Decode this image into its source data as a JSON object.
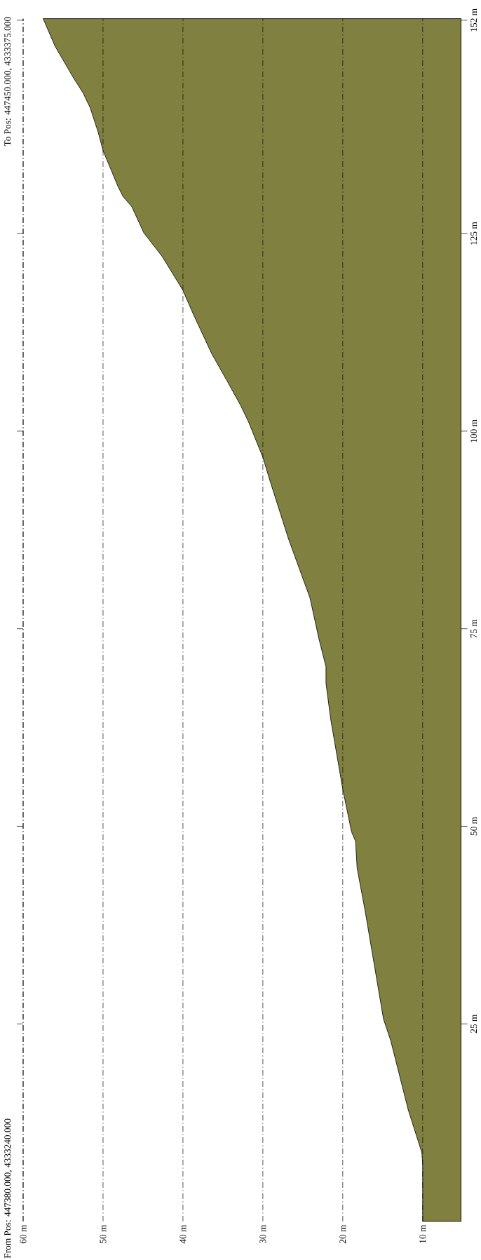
{
  "chart_data": {
    "type": "area",
    "orientation": "horizontal",
    "color": "#808040",
    "grid": "x",
    "x": [
      0,
      7.2,
      8.7,
      14.1,
      22.9,
      25.6,
      39.3,
      44.7,
      48.1,
      49.3,
      54.7,
      63.5,
      68.1,
      70.2,
      73.8,
      78.9,
      86.4,
      93.7,
      96.7,
      101.2,
      103.3,
      106.4,
      109.8,
      114.8,
      117.8,
      119.8,
      122.1,
      125.1,
      128.4,
      129.7,
      130.9,
      135.5,
      137.8,
      140.9,
      142.8,
      144.7,
      148.7,
      152.2
    ],
    "values": [
      10,
      10,
      10.1,
      11.8,
      14.0,
      14.9,
      17.2,
      18.2,
      18.4,
      18.9,
      20.0,
      21.5,
      22.1,
      22.1,
      23.0,
      24.1,
      26.8,
      29.1,
      30.0,
      31.8,
      32.8,
      34.5,
      36.4,
      38.7,
      40.0,
      41.2,
      42.6,
      44.9,
      46.4,
      47.5,
      48.1,
      50.0,
      50.6,
      51.6,
      52.5,
      53.7,
      56.0,
      57.5
    ],
    "xlim": [
      60,
      5.2
    ],
    "xticks": [
      {
        "value": 10,
        "label": "10 m"
      },
      {
        "value": 20,
        "label": "20 m"
      },
      {
        "value": 30,
        "label": "30 m"
      },
      {
        "value": 40,
        "label": "40 m"
      },
      {
        "value": 50,
        "label": "50 m"
      },
      {
        "value": 60,
        "label": "60 m"
      }
    ],
    "ylim": [
      0,
      152.2
    ],
    "yticks": [
      {
        "value": 25,
        "label": "25 m"
      },
      {
        "value": 50,
        "label": "50 m"
      },
      {
        "value": 75,
        "label": "75 m"
      },
      {
        "value": 100,
        "label": "100 m"
      },
      {
        "value": 125,
        "label": "125 m"
      },
      {
        "value": 152,
        "label": "152 m"
      }
    ],
    "annotations": [
      "From Pos: 447380.000, 4333240.000",
      "To Pos: 447450.000, 4333375.000"
    ]
  }
}
